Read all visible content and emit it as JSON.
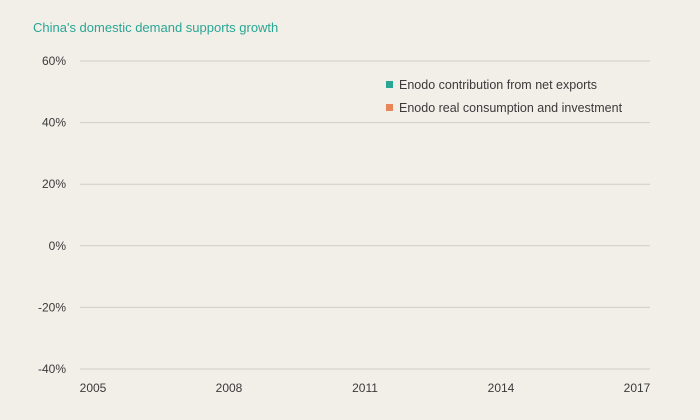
{
  "chart_data": {
    "type": "bar",
    "title": "China's domestic demand supports growth",
    "xlabel": "",
    "ylabel": "",
    "x_ticks": [
      "2005",
      "2008",
      "2011",
      "2014",
      "2017"
    ],
    "x_range": [
      2005,
      2017
    ],
    "y_ticks": [
      "60%",
      "40%",
      "20%",
      "0%",
      "-20%",
      "-40%"
    ],
    "ylim": [
      -40,
      60
    ],
    "grid": true,
    "legend_position": "top-right",
    "series": [
      {
        "name": "Enodo contribution from net exports",
        "color": "#2aa694",
        "values": []
      },
      {
        "name": "Enodo real consumption and investment",
        "color": "#e8865a",
        "values": []
      }
    ]
  }
}
